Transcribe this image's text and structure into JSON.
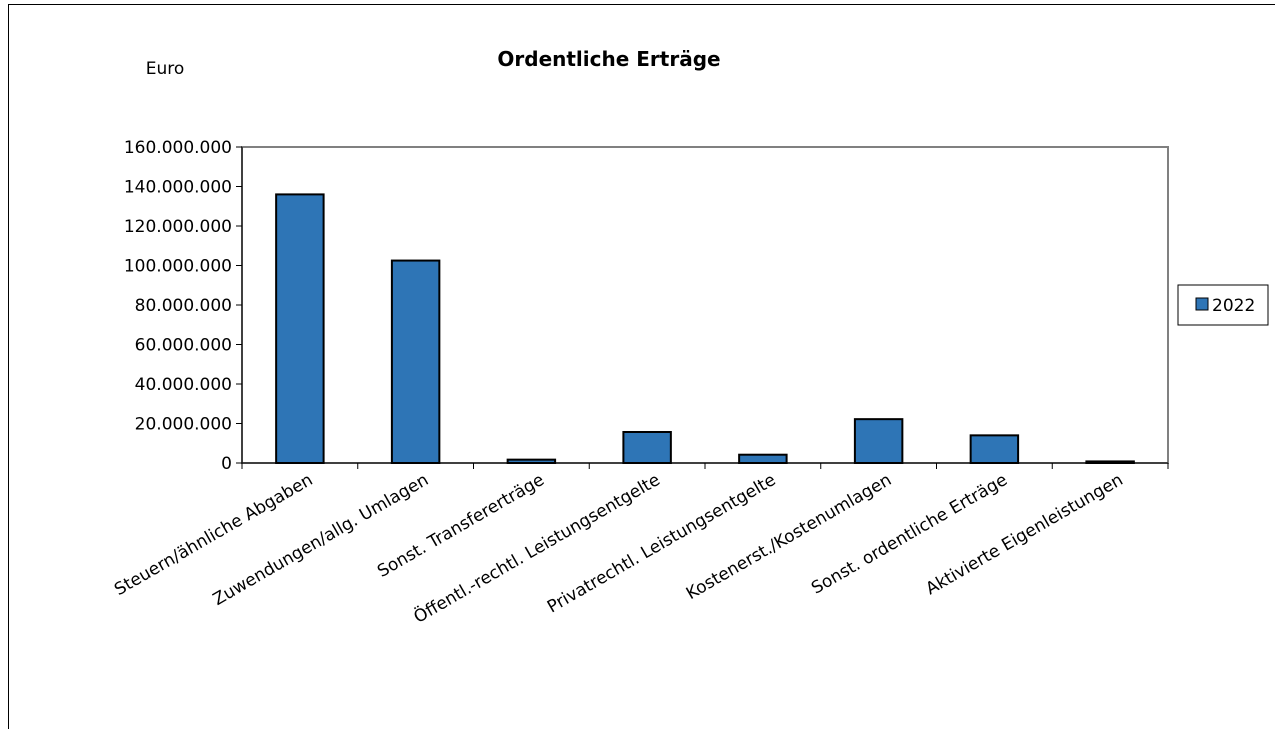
{
  "chart_data": {
    "type": "bar",
    "title": "Ordentliche Erträge",
    "ylabel": "Euro",
    "xlabel": "",
    "categories": [
      "Steuern/ähnliche Abgaben",
      "Zuwendungen/allg. Umlagen",
      "Sonst. Transfererträge",
      "Öffentl.-rechtl. Leistungsentgelte",
      "Privatrechtl. Leistungsentgelte",
      "Kostenerst./Kostenumlagen",
      "Sonst. ordentliche Erträge",
      "Aktivierte Eigenleistungen"
    ],
    "series": [
      {
        "name": "2022",
        "color": "#2e75b6",
        "values": [
          136000000,
          102500000,
          1700000,
          15700000,
          4200000,
          22200000,
          14000000,
          800000
        ]
      }
    ],
    "ylim": [
      0,
      160000000
    ],
    "yticks": [
      "0",
      "20.000.000",
      "40.000.000",
      "60.000.000",
      "80.000.000",
      "100.000.000",
      "120.000.000",
      "140.000.000",
      "160.000.000"
    ],
    "grid": false,
    "legend": "right"
  }
}
